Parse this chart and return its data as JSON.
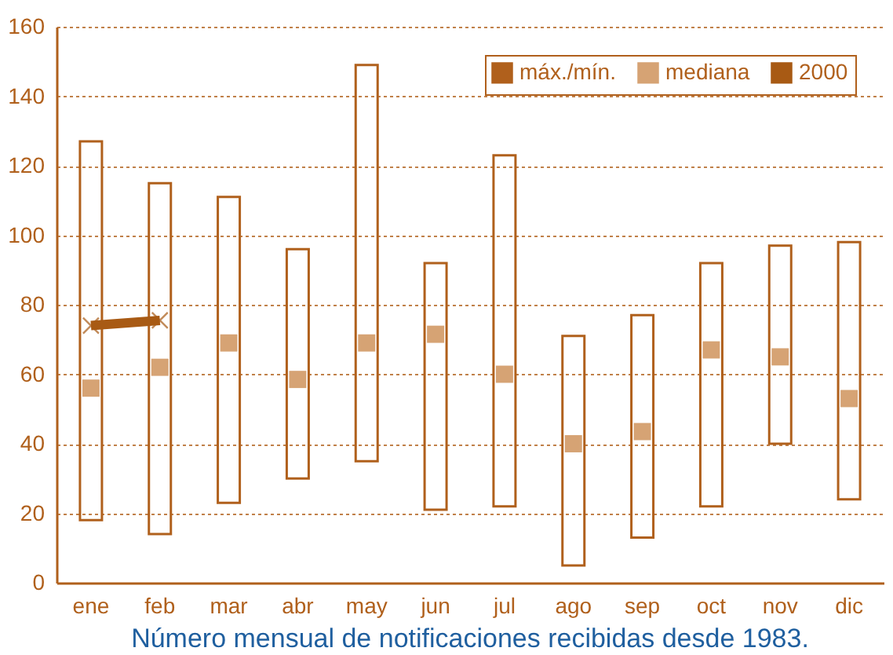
{
  "chart_data": {
    "type": "bar",
    "categories": [
      "ene",
      "feb",
      "mar",
      "abr",
      "may",
      "jun",
      "jul",
      "ago",
      "sep",
      "oct",
      "nov",
      "dic"
    ],
    "series": [
      {
        "name": "máx./mín.",
        "color": "#b0601c",
        "base": [
          18,
          14,
          23,
          30,
          35,
          21,
          22,
          5,
          13,
          22,
          40,
          24
        ],
        "values": [
          109,
          101,
          88,
          66,
          114,
          71,
          101,
          66,
          64,
          70,
          57,
          74
        ]
      },
      {
        "name": "mediana",
        "type": "scatter",
        "marker": "square",
        "color": "#d6a374",
        "values": [
          56,
          62,
          69,
          58.5,
          69,
          71.5,
          60,
          40,
          43.5,
          67,
          65,
          53
        ]
      },
      {
        "name": "2000",
        "type": "line",
        "marker": "cross",
        "color": "#a85a14",
        "values": [
          74,
          75.5,
          null,
          null,
          null,
          null,
          null,
          null,
          null,
          null,
          null,
          null
        ]
      }
    ],
    "ylim": [
      0,
      160
    ],
    "yticks": [
      0,
      20,
      40,
      60,
      80,
      100,
      120,
      140,
      160
    ],
    "grid": "y",
    "legend": "top right",
    "annotations": [
      "Número mensual de notificaciones recibidas desde 1983."
    ]
  }
}
